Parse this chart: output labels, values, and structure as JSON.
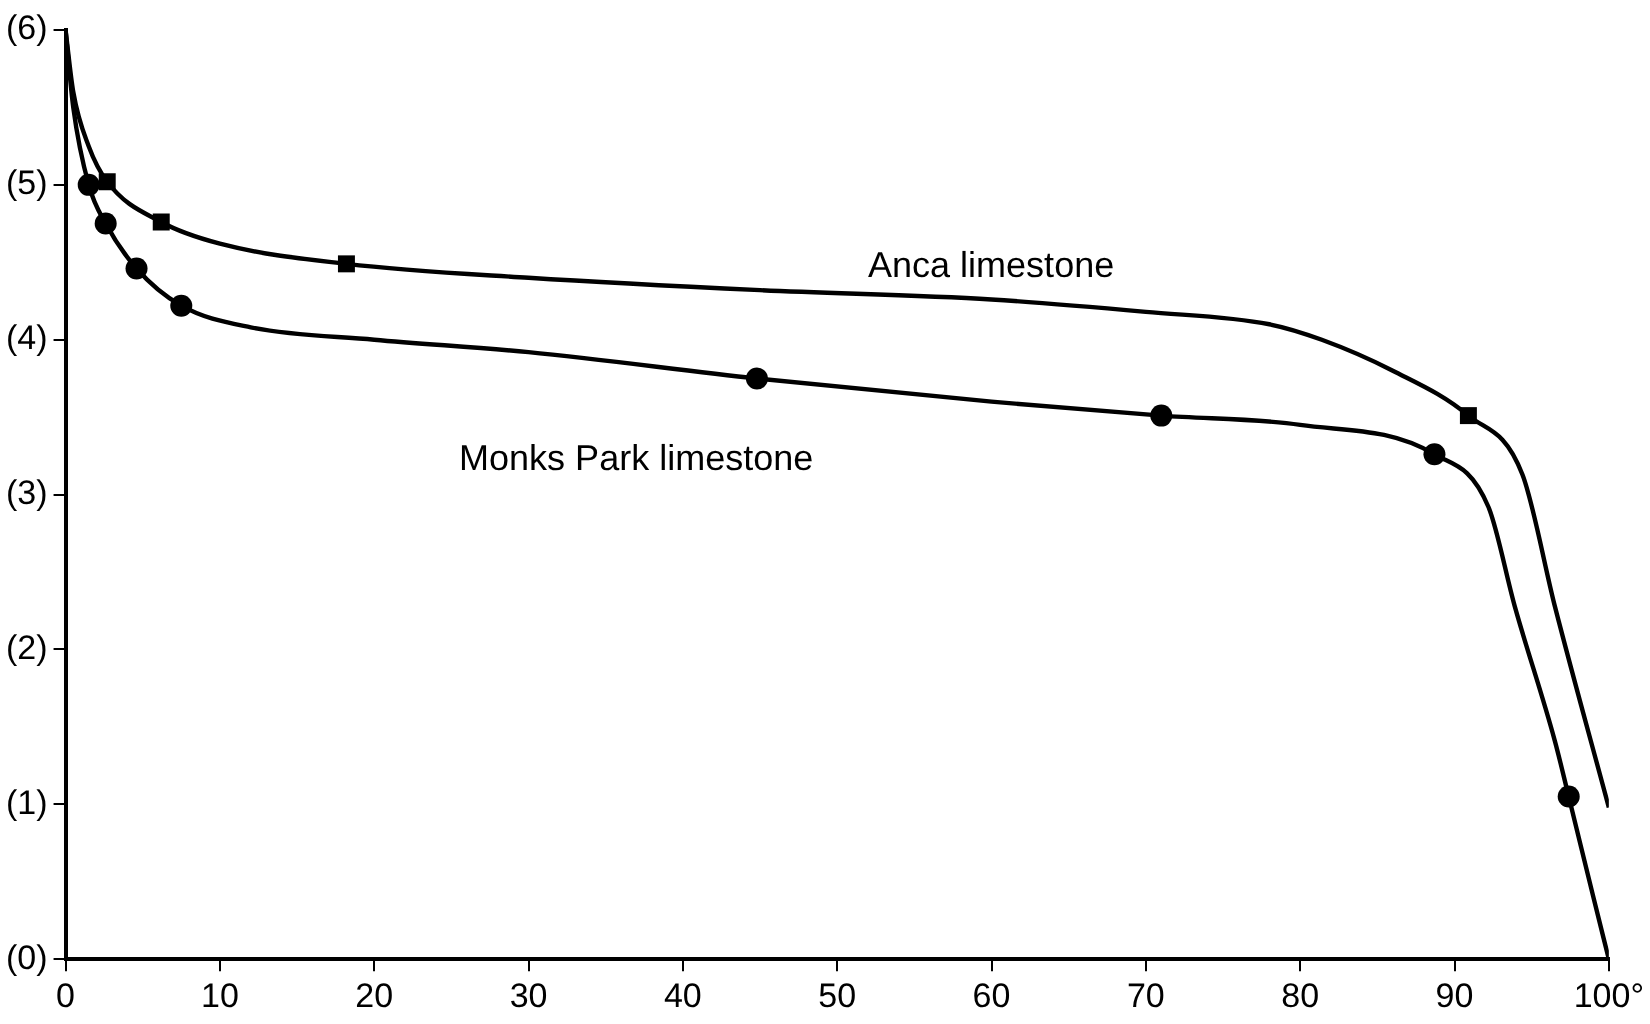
{
  "chart_data": {
    "type": "line",
    "xlim": [
      0,
      100
    ],
    "ylim": [
      0,
      6
    ],
    "xticks": [
      0,
      10,
      20,
      30,
      40,
      50,
      60,
      70,
      80,
      90,
      {
        "value": 100,
        "label": "100°"
      }
    ],
    "yticks": [
      {
        "value": 0,
        "label": "(0)"
      },
      {
        "value": 1,
        "label": "(1)"
      },
      {
        "value": 2,
        "label": "(2)"
      },
      {
        "value": 3,
        "label": "(3)"
      },
      {
        "value": 4,
        "label": "(4)"
      },
      {
        "value": 5,
        "label": "(5)"
      },
      {
        "value": 6,
        "label": "(6)"
      }
    ],
    "grid": false,
    "legend": false,
    "line_style": "solid",
    "series": [
      {
        "name": "Anca limestone",
        "marker": "none",
        "color": "#000000",
        "x": [
          0,
          0.5,
          1.5,
          2.7,
          6.2,
          10,
          18.2,
          30,
          45,
          60,
          70,
          78,
          81.4,
          86,
          90.9,
          94.4,
          96.5,
          100
        ],
        "values": [
          6.0,
          5.6,
          5.25,
          5.02,
          4.76,
          4.62,
          4.49,
          4.4,
          4.32,
          4.26,
          4.18,
          4.1,
          4.0,
          3.8,
          3.51,
          3.13,
          2.28,
          0.98
        ]
      },
      {
        "name": "Monks Park limestone",
        "marker": "none",
        "color": "#000000",
        "x": [
          0,
          0.5,
          1.5,
          2.6,
          4.6,
          7.5,
          12,
          20,
          30,
          44.8,
          60,
          71,
          80,
          88.7,
          92.2,
          93.9,
          96.5,
          97.4,
          99,
          100
        ],
        "values": [
          6.0,
          5.5,
          5.0,
          4.75,
          4.46,
          4.22,
          4.08,
          4.0,
          3.92,
          3.75,
          3.6,
          3.51,
          3.45,
          3.26,
          2.92,
          2.28,
          1.41,
          1.05,
          0.4,
          0
        ]
      },
      {
        "type": "scatter",
        "marker": "square",
        "color": "#000000",
        "x": [
          2.7,
          6.2,
          18.2,
          90.9
        ],
        "values": [
          5.02,
          4.76,
          4.49,
          3.51
        ]
      },
      {
        "type": "scatter",
        "marker": "circle",
        "color": "#000000",
        "x": [
          1.5,
          2.6,
          4.6,
          7.5,
          44.8,
          71,
          88.7,
          97.4
        ],
        "values": [
          5.0,
          4.75,
          4.46,
          4.22,
          3.75,
          3.51,
          3.26,
          1.05
        ]
      }
    ]
  }
}
